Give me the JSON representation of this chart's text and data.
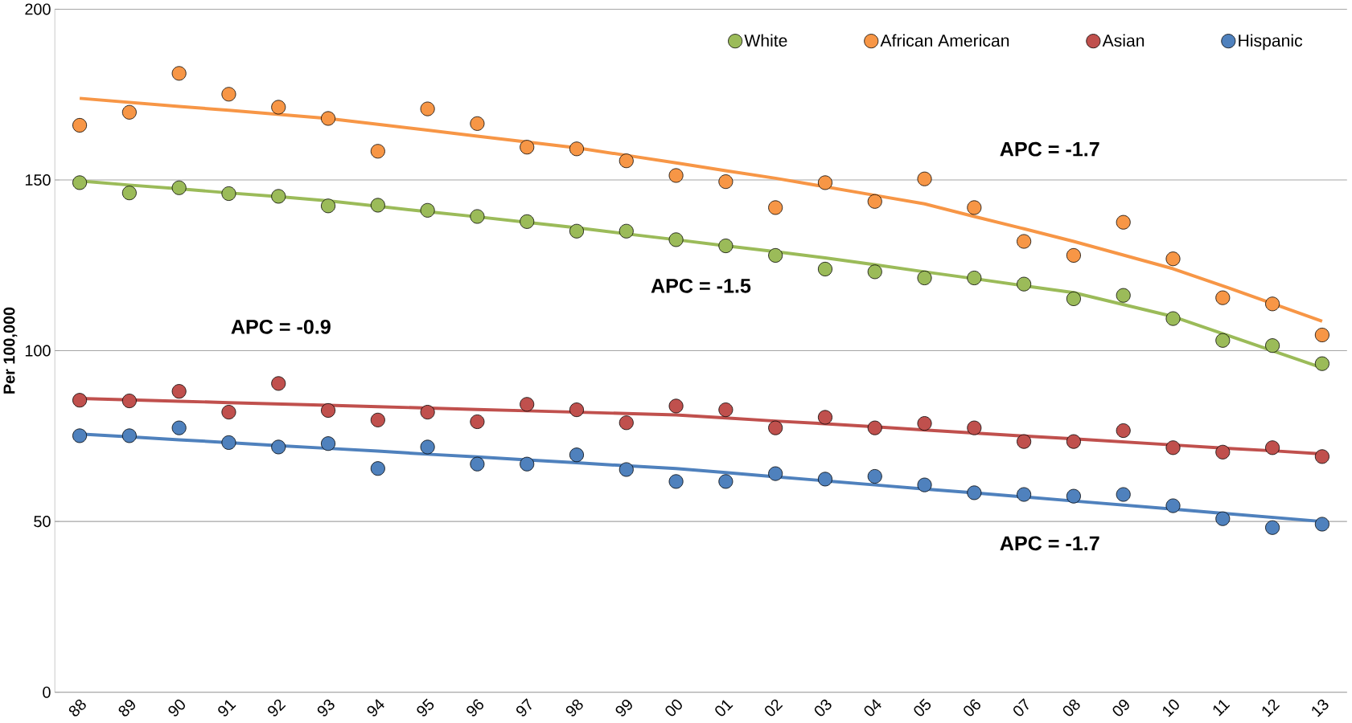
{
  "chart_data": {
    "type": "scatter",
    "ylabel": "Per 100,000",
    "categories": [
      "88",
      "89",
      "90",
      "91",
      "92",
      "93",
      "94",
      "95",
      "96",
      "97",
      "98",
      "99",
      "00",
      "01",
      "02",
      "03",
      "04",
      "05",
      "06",
      "07",
      "08",
      "09",
      "10",
      "11",
      "12",
      "13"
    ],
    "ylim": [
      0,
      200
    ],
    "yticks": [
      0,
      50,
      100,
      150,
      200
    ],
    "grid": "y",
    "legend": "top right",
    "series": [
      {
        "type": "line",
        "marker": "none",
        "color": "#f79646",
        "values": [
          173.9,
          172.7,
          171.5,
          170.4,
          169.2,
          168,
          166.3,
          164.6,
          162.8,
          161.1,
          159.4,
          157.2,
          155,
          152.7,
          150.5,
          148,
          145.5,
          143,
          139.3,
          135.7,
          132,
          128,
          124,
          119,
          113.8,
          108.6
        ]
      },
      {
        "type": "line",
        "marker": "none",
        "color": "#9bbb59",
        "values": [
          149.7,
          148.5,
          147.4,
          146.2,
          145.1,
          143.9,
          142.3,
          140.7,
          139.2,
          137.6,
          136,
          134.2,
          132.5,
          130.7,
          129,
          127.2,
          125.2,
          123.1,
          121.1,
          119,
          117,
          113.5,
          110,
          105,
          100,
          95
        ]
      },
      {
        "type": "line",
        "marker": "none",
        "color": "#c0504d",
        "values": [
          86,
          85.6,
          85.2,
          84.8,
          84.4,
          84,
          83.6,
          83.2,
          82.8,
          82.4,
          82,
          81.6,
          81.2,
          80.3,
          79.4,
          78.6,
          77.7,
          76.8,
          75.9,
          75,
          74.2,
          73.3,
          72.4,
          71.5,
          70.7,
          69.8
        ]
      },
      {
        "type": "line",
        "marker": "none",
        "color": "#4f81bd",
        "values": [
          75.6,
          74.8,
          73.9,
          73.1,
          72.2,
          71.4,
          70.6,
          69.7,
          68.9,
          68,
          67.2,
          66.3,
          65.5,
          64.3,
          63.1,
          61.9,
          60.7,
          59.5,
          58.4,
          57.2,
          56,
          54.8,
          53.6,
          52.4,
          51.2,
          50
        ]
      },
      {
        "name": "White",
        "marker": "circle",
        "color": "#9bbb59",
        "values": [
          149.2,
          146.2,
          147.7,
          146,
          145.2,
          142.4,
          142.6,
          141.1,
          139.3,
          137.8,
          135,
          135,
          132.5,
          130.7,
          127.9,
          123.9,
          123.1,
          121.3,
          121.3,
          119.5,
          115.2,
          116.2,
          109.4,
          103,
          101.5,
          96.2
        ]
      },
      {
        "name": "African American",
        "marker": "circle",
        "color": "#f79646",
        "values": [
          166,
          169.8,
          181.2,
          175.1,
          171.3,
          168,
          158.4,
          170.8,
          166.5,
          159.6,
          159.1,
          155.6,
          151.3,
          149.5,
          141.9,
          149.2,
          143.7,
          150.3,
          141.9,
          132,
          127.9,
          137.6,
          126.9,
          115.5,
          113.7,
          104.6
        ]
      },
      {
        "name": "Asian",
        "marker": "circle",
        "color": "#c0504d",
        "values": [
          85.5,
          85.3,
          88.1,
          82,
          90.4,
          82.5,
          79.7,
          82,
          79.2,
          84.3,
          82.7,
          78.9,
          83.8,
          82.7,
          77.4,
          80.5,
          77.4,
          78.7,
          77.4,
          73.4,
          73.4,
          76.6,
          71.6,
          70.3,
          71.6,
          69
        ]
      },
      {
        "name": "Hispanic",
        "marker": "circle",
        "color": "#4f81bd",
        "values": [
          75.1,
          75.1,
          77.4,
          73.1,
          71.8,
          72.8,
          65.5,
          71.8,
          66.8,
          66.8,
          69.5,
          65.2,
          61.7,
          61.7,
          64,
          62.4,
          63.2,
          60.7,
          58.4,
          57.9,
          57.4,
          57.9,
          54.6,
          50.8,
          48.2,
          49.2
        ]
      }
    ],
    "annotations": [
      "APC = -1.7",
      "APC = -1.5",
      "APC = -0.9",
      "APC = -1.7"
    ]
  }
}
